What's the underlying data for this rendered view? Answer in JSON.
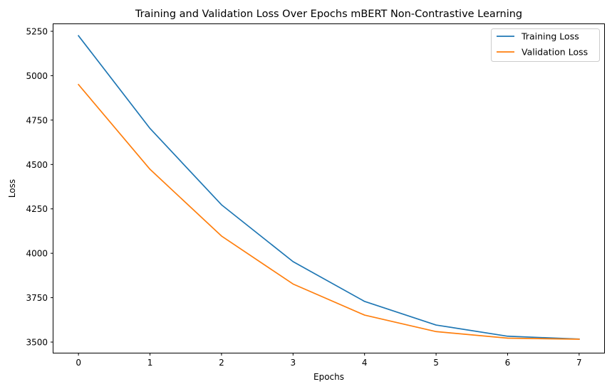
{
  "chart_data": {
    "type": "line",
    "title": "Training and Validation Loss Over Epochs mBERT Non-Contrastive Learning",
    "xlabel": "Epochs",
    "ylabel": "Loss",
    "x": [
      0,
      1,
      2,
      3,
      4,
      5,
      6,
      7
    ],
    "xlim": [
      -0.35,
      7.35
    ],
    "ylim": [
      3440,
      5290
    ],
    "xticks": [
      "0",
      "1",
      "2",
      "3",
      "4",
      "5",
      "6",
      "7"
    ],
    "yticks": [
      "3500",
      "3750",
      "4000",
      "4250",
      "4500",
      "4750",
      "5000",
      "5250"
    ],
    "grid": false,
    "legend_position": "top-right",
    "series": [
      {
        "name": "Training Loss",
        "color": "#1f77b4",
        "values": [
          5225,
          4703,
          4273,
          3953,
          3729,
          3596,
          3533,
          3517
        ]
      },
      {
        "name": "Validation Loss",
        "color": "#ff7f0e",
        "values": [
          4950,
          4473,
          4097,
          3827,
          3652,
          3559,
          3522,
          3516
        ]
      }
    ]
  }
}
